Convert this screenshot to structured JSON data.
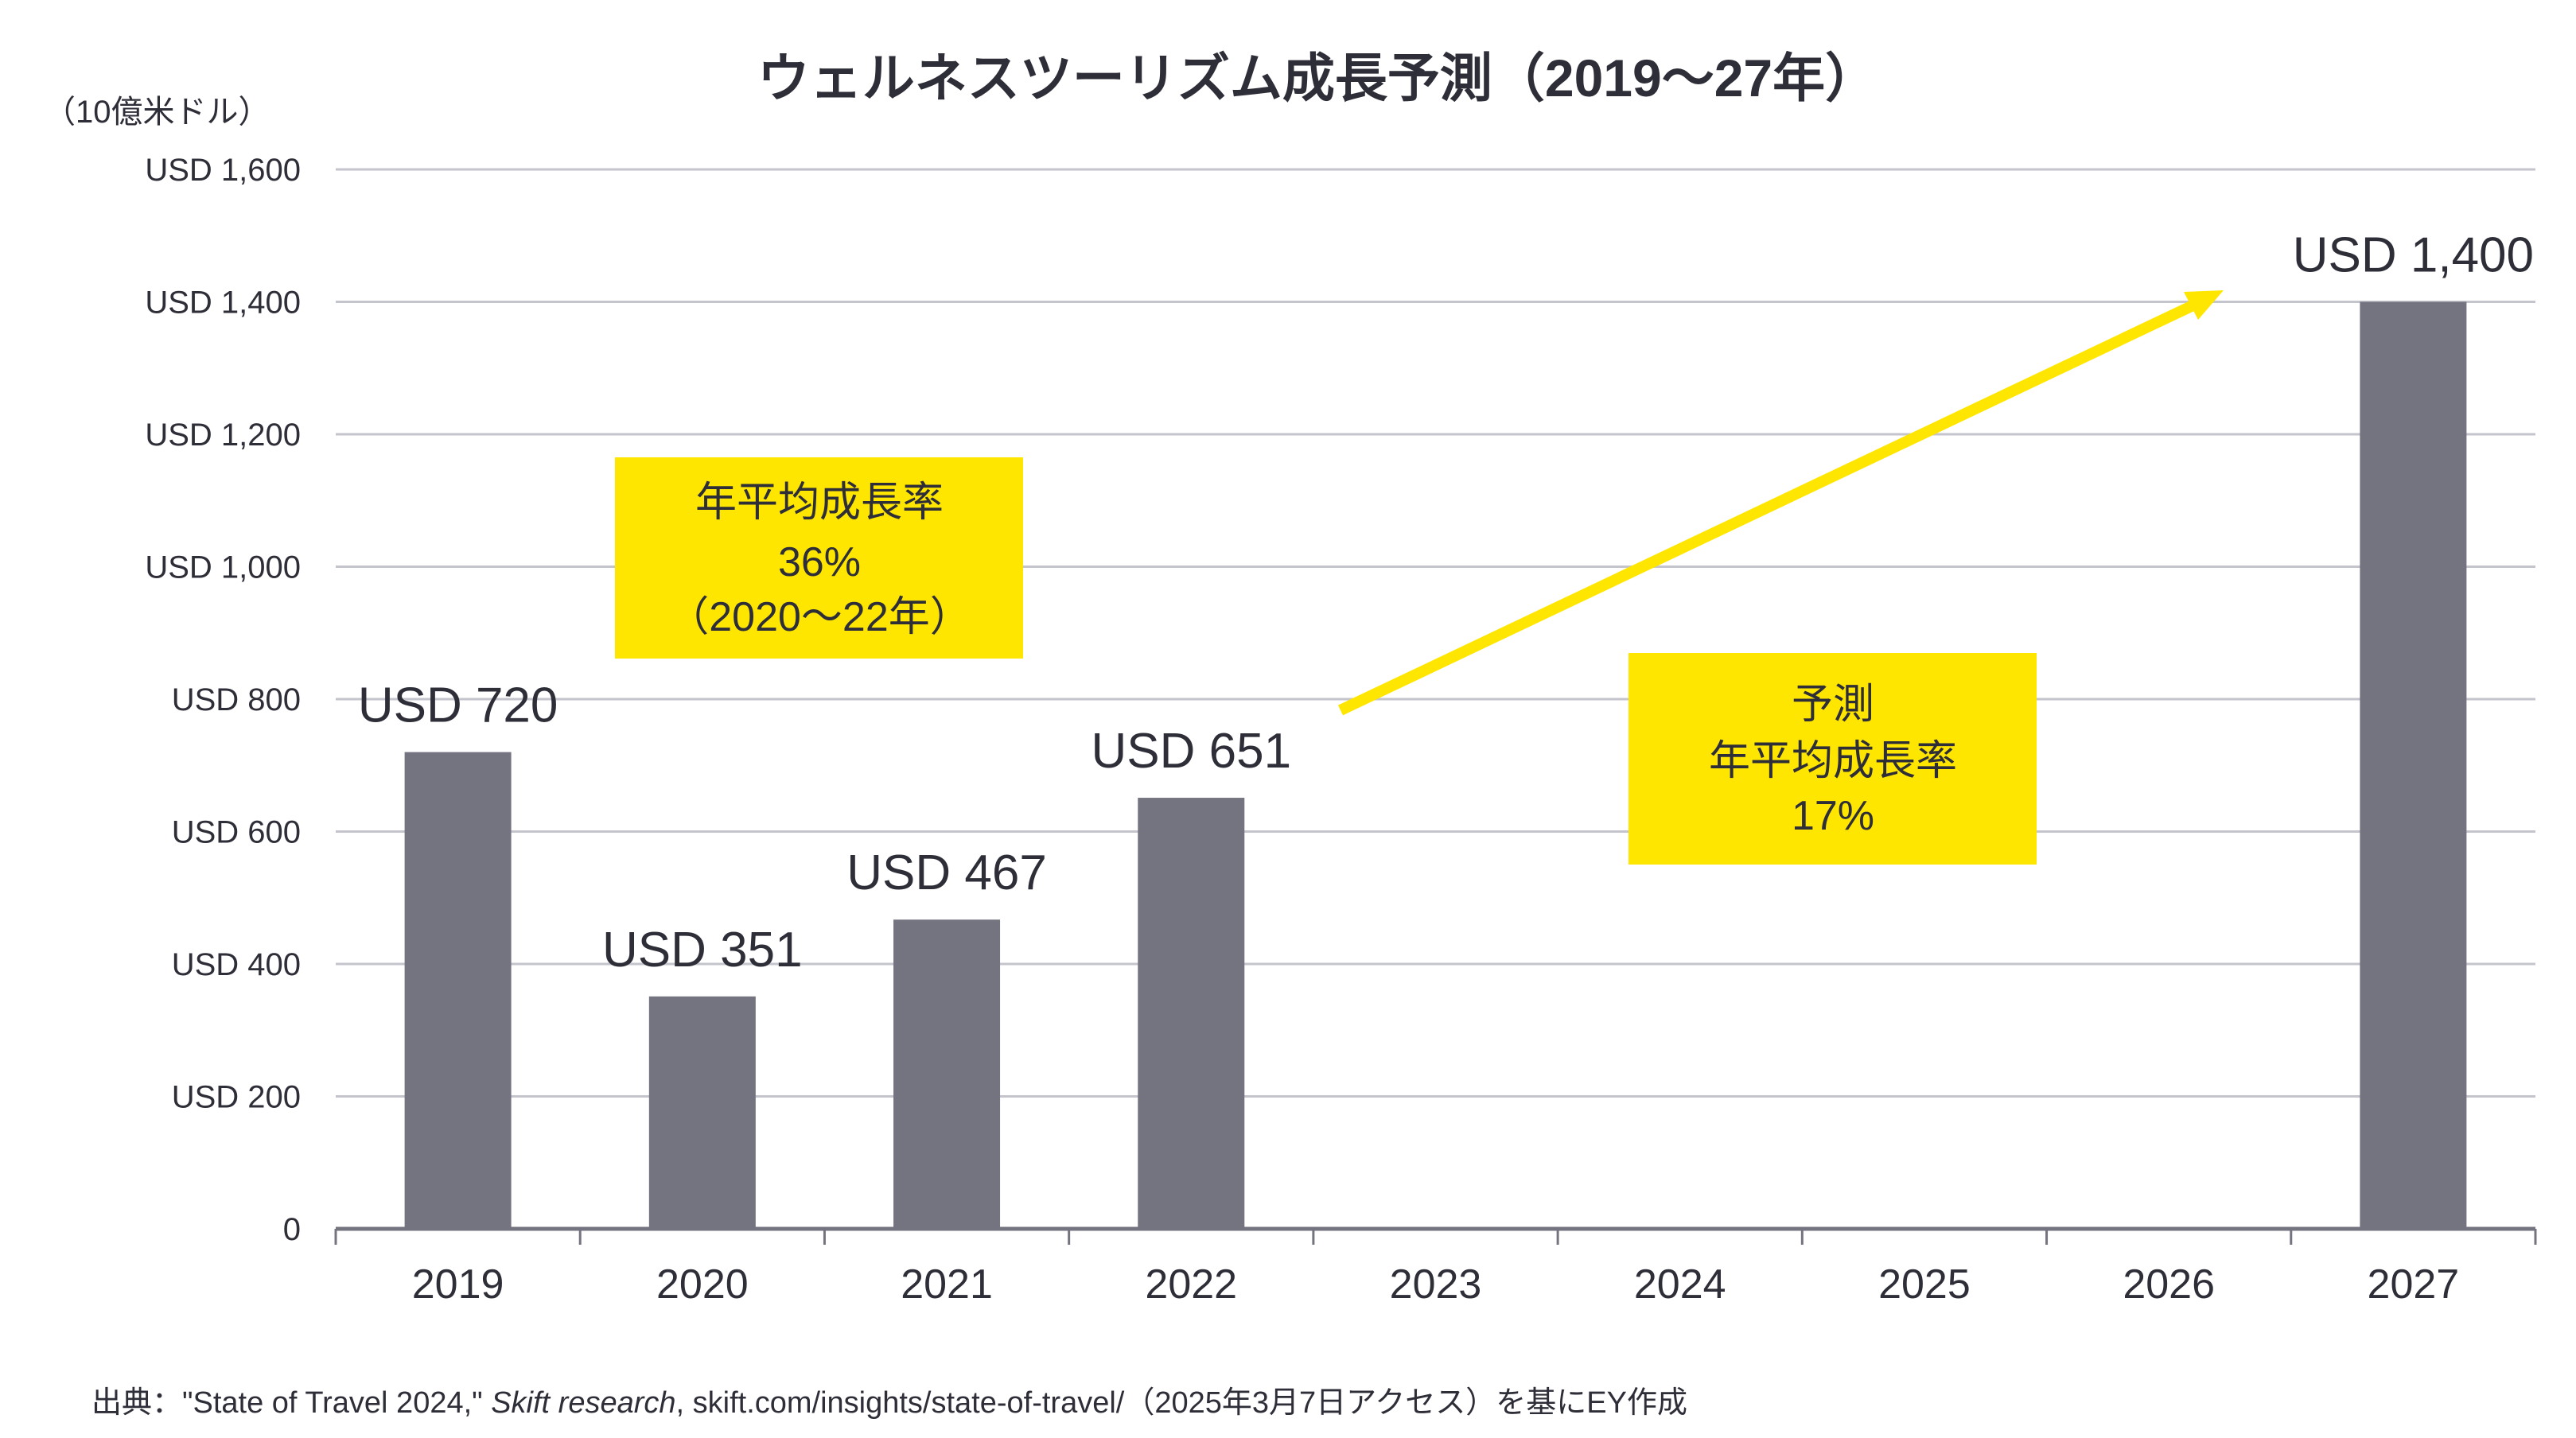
{
  "colors": {
    "bar": "#747480",
    "text": "#2E2E38",
    "grid": "#C4C4CD",
    "accent_yellow": "#FFE600"
  },
  "chart_data": {
    "type": "bar",
    "title": "ウェルネスツーリズム成長予測（2019〜27年）",
    "ylabel": "（10億米ドル）",
    "xlabel": "",
    "ylim": [
      0,
      1600
    ],
    "grid": true,
    "categories": [
      "2019",
      "2020",
      "2021",
      "2022",
      "2023",
      "2024",
      "2025",
      "2026",
      "2027"
    ],
    "values": [
      720,
      351,
      467,
      651,
      null,
      null,
      null,
      null,
      1400
    ],
    "data_labels": [
      "USD 720",
      "USD 351",
      "USD 467",
      "USD 651",
      "",
      "",
      "",
      "",
      "USD 1,400"
    ],
    "y_ticks": [
      0,
      200,
      400,
      600,
      800,
      1000,
      1200,
      1400,
      1600
    ],
    "y_tick_labels": [
      "0",
      "USD 200",
      "USD 400",
      "USD 600",
      "USD 800",
      "USD 1,000",
      "USD 1,200",
      "USD 1,400",
      "USD 1,600"
    ],
    "annotations": [
      {
        "name": "historical-cagr-box",
        "lines": [
          "年平均成長率",
          "36%",
          "（2020〜22年）"
        ]
      },
      {
        "name": "forecast-cagr-box",
        "lines": [
          "予測",
          "年平均成長率",
          "17%"
        ]
      }
    ],
    "trend_arrow": {
      "from_category": "2022",
      "to_category": "2027"
    }
  },
  "source": {
    "prefix": "出典：\"State of Travel 2024,\" ",
    "italic": "Skift research",
    "suffix": ", skift.com/insights/state-of-travel/（2025年3月7日アクセス）を基にEY作成"
  }
}
